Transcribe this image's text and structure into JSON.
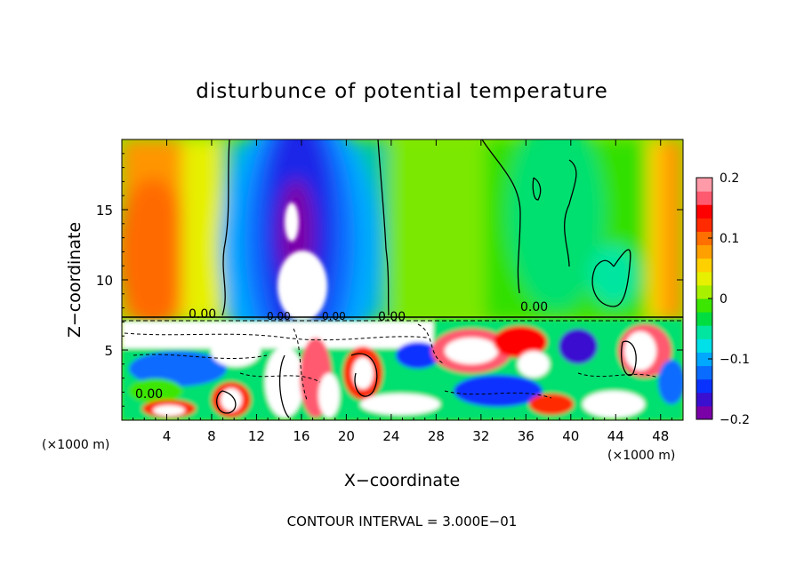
{
  "chart_data": {
    "type": "heatmap",
    "title": "disturbunce of potential temperature",
    "xlabel": "X−coordinate",
    "ylabel": "Z−coordinate",
    "x_unit_left": "(×1000 m)",
    "x_unit_right": "(×1000 m)",
    "xlim": [
      0,
      50
    ],
    "ylim": [
      0,
      20
    ],
    "x_ticks": [
      4,
      8,
      12,
      16,
      20,
      24,
      28,
      32,
      36,
      40,
      44,
      48
    ],
    "y_ticks": [
      5,
      10,
      15
    ],
    "x_tick_labels": [
      "4",
      "8",
      "12",
      "16",
      "20",
      "24",
      "28",
      "32",
      "36",
      "40",
      "44",
      "48"
    ],
    "y_tick_labels": [
      "5",
      "10",
      "15"
    ],
    "colorbar": {
      "range": [
        -0.2,
        0.2
      ],
      "ticks": [
        0.2,
        0.1,
        0,
        -0.1,
        -0.2
      ],
      "tick_labels": [
        "0.2",
        "0.1",
        "0",
        "−0.1",
        "−0.2"
      ],
      "colors": [
        "#7a00a8",
        "#3a0fd0",
        "#0a32ff",
        "#0a6cff",
        "#00a8ff",
        "#00e0e8",
        "#00e6a0",
        "#00dd40",
        "#3ce600",
        "#a8f000",
        "#e6f000",
        "#ffd000",
        "#ffa000",
        "#ff7000",
        "#ff2a00",
        "#ff0000",
        "#ff5a70",
        "#ff9aa8"
      ]
    },
    "contour_labels": [
      "0.00",
      "0.00",
      "0.00",
      "0.00",
      "0.00",
      "0.00"
    ],
    "footer": "CONTOUR INTERVAL = 3.000E−01",
    "grid": false
  }
}
